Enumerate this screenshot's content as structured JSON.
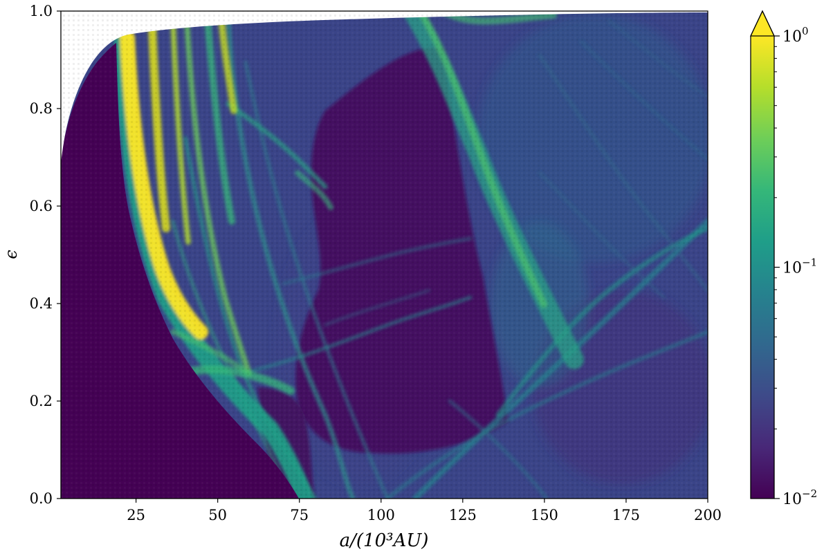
{
  "chart_data": {
    "type": "heatmap",
    "title": "",
    "xlabel": "a/(10³AU)",
    "ylabel": "ϵ",
    "xlim": [
      2,
      200
    ],
    "ylim": [
      0,
      1
    ],
    "x_ticks": [
      25,
      50,
      75,
      100,
      125,
      150,
      175,
      200
    ],
    "x_tick_labels": [
      "25",
      "50",
      "75",
      "100",
      "125",
      "150",
      "175",
      "200"
    ],
    "y_ticks": [
      0.0,
      0.2,
      0.4,
      0.6,
      0.8,
      1.0
    ],
    "y_tick_labels": [
      "0.0",
      "0.2",
      "0.4",
      "0.6",
      "0.8",
      "1.0"
    ],
    "colorbar": {
      "scale": "log",
      "range": [
        0.01,
        1
      ],
      "colormap": "viridis",
      "extend": "max",
      "ticks": [
        0.01,
        0.1,
        1
      ],
      "tick_labels": [
        {
          "base": "10",
          "exp": "−2"
        },
        {
          "base": "10",
          "exp": "−1"
        },
        {
          "base": "10",
          "exp": "0"
        }
      ],
      "colors": [
        "#440154",
        "#482878",
        "#3e4a89",
        "#31688e",
        "#26828e",
        "#1f9e89",
        "#35b779",
        "#6ece58",
        "#b5de2b",
        "#fde725"
      ]
    },
    "masked_region": "white area above the eccentricity limit curve (top-left)",
    "features": [
      {
        "type": "low_region",
        "description": "uniform minimum (10^-2) for small a, left of boundary from (2, 0.69) to (20, 0.94) down to (80, 0.0)"
      },
      {
        "type": "bright_band",
        "description": "yellow band hugging the left boundary, a ≈ 20–45, ϵ ≈ 0.3–0.95"
      },
      {
        "type": "resonance_lines",
        "description": "many thin green diagonal streaks across the plane"
      },
      {
        "type": "broad_band",
        "description": "bright green curve from (120, 1.0) down through (150, 0.4) to (165, 0.25)"
      },
      {
        "type": "dark_region",
        "description": "dark pocket a ≈ 80–135, ϵ ≈ 0.1–0.9"
      }
    ]
  }
}
